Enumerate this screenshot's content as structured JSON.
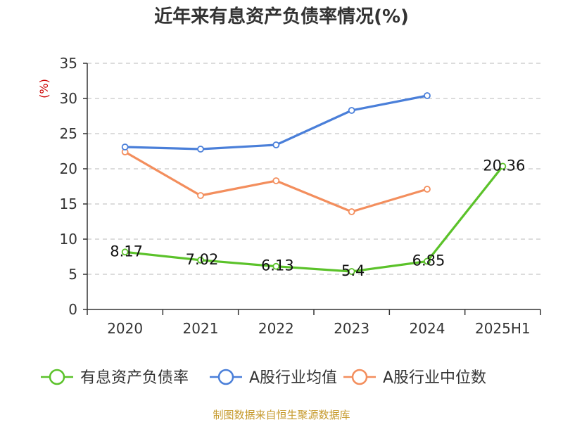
{
  "chart_data": {
    "type": "line",
    "title": "近年来有息资产负债率情况(%)",
    "ylabel": "(%)",
    "xlabel": "",
    "categories": [
      "2020",
      "2021",
      "2022",
      "2023",
      "2024",
      "2025H1"
    ],
    "ylim": [
      0,
      35
    ],
    "yticks": [
      0,
      5,
      10,
      15,
      20,
      25,
      30,
      35
    ],
    "grid": true,
    "legend_position": "bottom",
    "series": [
      {
        "name": "有息资产负债率",
        "color": "#5bc22a",
        "values": [
          8.17,
          7.02,
          6.13,
          5.4,
          6.85,
          20.36
        ],
        "labels": [
          "8.17",
          "7.02",
          "6.13",
          "5.4",
          "6.85",
          "20.36"
        ]
      },
      {
        "name": "A股行业均值",
        "color": "#4a7fd9",
        "values": [
          23.1,
          22.8,
          23.4,
          28.3,
          30.4,
          null
        ]
      },
      {
        "name": "A股行业中位数",
        "color": "#f38e5d",
        "values": [
          22.4,
          16.2,
          18.3,
          13.9,
          17.1,
          null
        ]
      }
    ],
    "source": "制图数据来自恒生聚源数据库",
    "ylabel_color": "#cc0000",
    "source_color": "#c69a2c"
  }
}
